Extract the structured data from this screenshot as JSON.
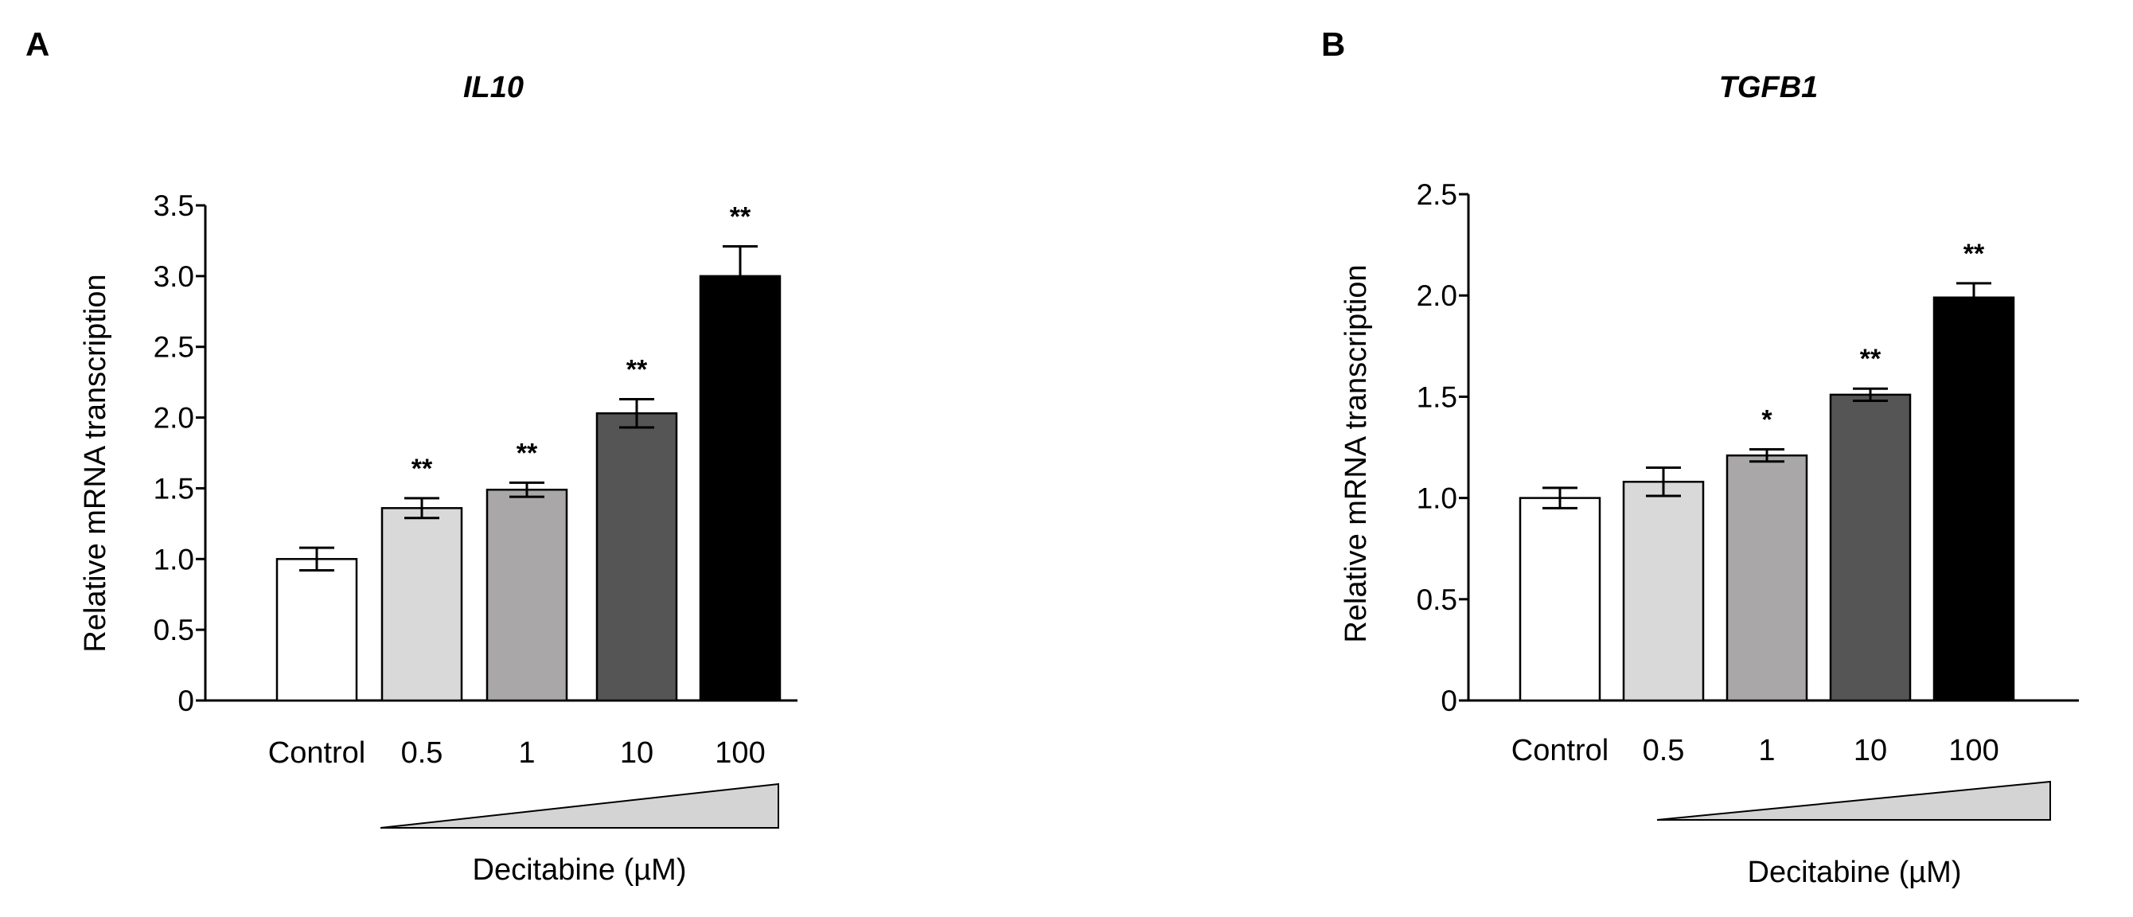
{
  "figure": {
    "panels": [
      {
        "letter": "A",
        "wedge_label": "Decitabine (µM)",
        "chart_data": {
          "type": "bar",
          "title": "IL10",
          "xlabel": "Decitabine (µM)",
          "ylabel": "Relative  mRNA transcription",
          "ylim": [
            0,
            3.5
          ],
          "yticks": [
            "0",
            "0.5",
            "1.0",
            "1.5",
            "2.0",
            "2.5",
            "3.0",
            "3.5"
          ],
          "ytick_values": [
            0,
            0.5,
            1.0,
            1.5,
            2.0,
            2.5,
            3.0,
            3.5
          ],
          "categories": [
            "Control",
            "0.5",
            "1",
            "10",
            "100"
          ],
          "values": [
            1.0,
            1.36,
            1.49,
            2.03,
            3.0
          ],
          "errors": [
            0.08,
            0.07,
            0.05,
            0.1,
            0.21
          ],
          "significance": [
            "",
            "**",
            "**",
            "**",
            "**"
          ],
          "colors": [
            "#ffffff",
            "#d9d9d9",
            "#a9a7a7",
            "#555555",
            "#000000"
          ]
        }
      },
      {
        "letter": "B",
        "wedge_label": "Decitabine (µM)",
        "chart_data": {
          "type": "bar",
          "title": "TGFB1",
          "xlabel": "Decitabine (µM)",
          "ylabel": "Relative  mRNA transcription",
          "ylim": [
            0,
            2.5
          ],
          "yticks": [
            "0",
            "0.5",
            "1.0",
            "1.5",
            "2.0",
            "2.5"
          ],
          "ytick_values": [
            0,
            0.5,
            1.0,
            1.5,
            2.0,
            2.5
          ],
          "categories": [
            "Control",
            "0.5",
            "1",
            "10",
            "100"
          ],
          "values": [
            1.0,
            1.08,
            1.21,
            1.51,
            1.99
          ],
          "errors": [
            0.05,
            0.07,
            0.03,
            0.03,
            0.07
          ],
          "significance": [
            "",
            "",
            "*",
            "**",
            "**"
          ],
          "colors": [
            "#ffffff",
            "#d9d9d9",
            "#a9a7a7",
            "#555555",
            "#000000"
          ]
        }
      }
    ]
  }
}
